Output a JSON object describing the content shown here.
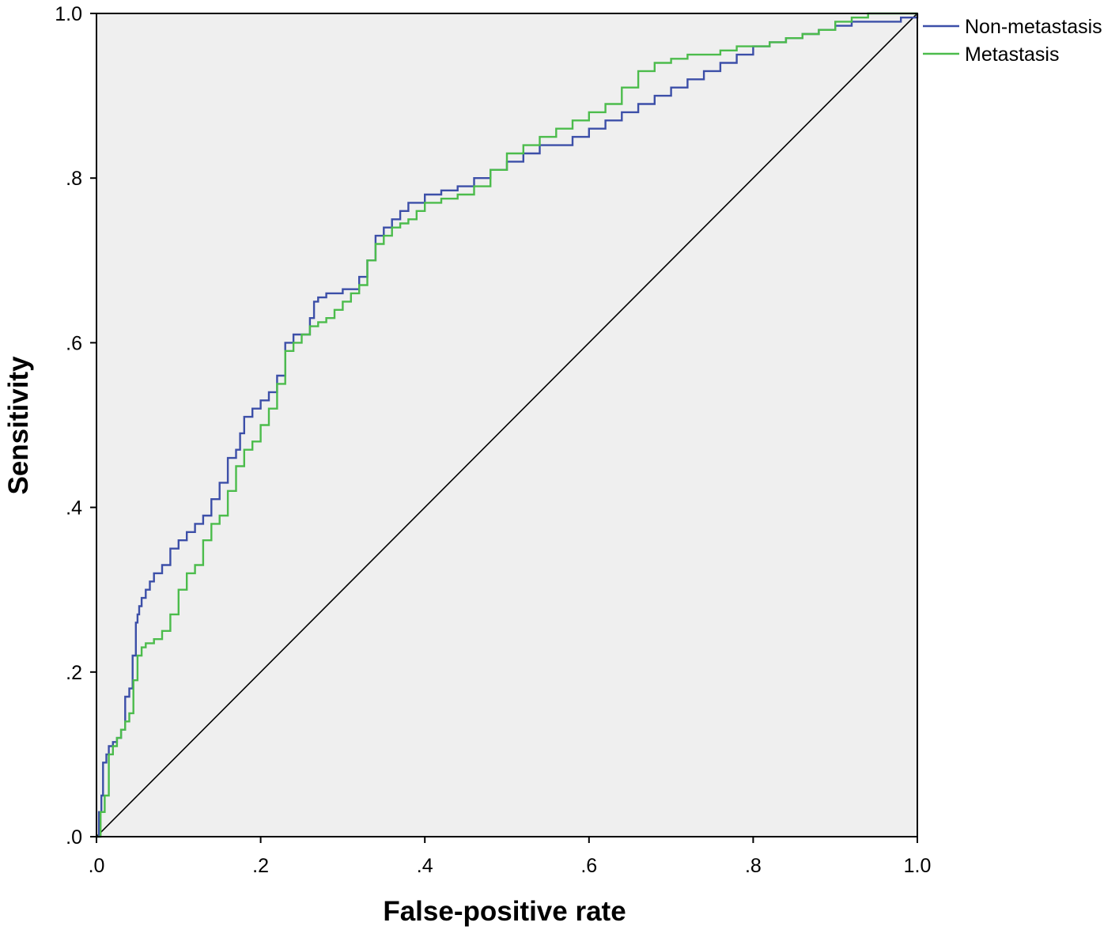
{
  "chart_data": {
    "type": "line",
    "title": "",
    "xlabel": "False-positive rate",
    "ylabel": "Sensitivity",
    "xlim": [
      0,
      1
    ],
    "ylim": [
      0,
      1
    ],
    "xticks": [
      0,
      0.2,
      0.4,
      0.6,
      0.8,
      1.0
    ],
    "xtick_labels": [
      ".0",
      ".2",
      ".4",
      ".6",
      ".8",
      "1.0"
    ],
    "yticks": [
      0,
      0.2,
      0.4,
      0.6,
      0.8,
      1.0
    ],
    "ytick_labels": [
      ".0",
      ".2",
      ".4",
      ".6",
      ".8",
      "1.0"
    ],
    "grid": false,
    "legend_position": "top-right outside",
    "plot_background": "#efefef",
    "reference_line": {
      "x": [
        0,
        1
      ],
      "y": [
        0,
        1
      ],
      "color": "#000000"
    },
    "series": [
      {
        "name": "Non-metastasis",
        "color": "#3c4fa8",
        "x": [
          0,
          0.003,
          0.006,
          0.008,
          0.012,
          0.015,
          0.02,
          0.025,
          0.03,
          0.035,
          0.04,
          0.044,
          0.048,
          0.05,
          0.052,
          0.055,
          0.06,
          0.065,
          0.07,
          0.08,
          0.09,
          0.1,
          0.11,
          0.12,
          0.13,
          0.14,
          0.15,
          0.16,
          0.17,
          0.175,
          0.18,
          0.19,
          0.2,
          0.21,
          0.22,
          0.23,
          0.24,
          0.25,
          0.26,
          0.265,
          0.27,
          0.28,
          0.29,
          0.3,
          0.32,
          0.33,
          0.34,
          0.35,
          0.36,
          0.37,
          0.38,
          0.4,
          0.42,
          0.44,
          0.46,
          0.48,
          0.5,
          0.52,
          0.54,
          0.56,
          0.58,
          0.6,
          0.62,
          0.64,
          0.66,
          0.68,
          0.7,
          0.72,
          0.74,
          0.76,
          0.78,
          0.8,
          0.82,
          0.84,
          0.86,
          0.88,
          0.9,
          0.92,
          0.94,
          0.96,
          0.98,
          1.0
        ],
        "y": [
          0,
          0.03,
          0.05,
          0.09,
          0.1,
          0.11,
          0.115,
          0.12,
          0.13,
          0.17,
          0.18,
          0.22,
          0.26,
          0.27,
          0.28,
          0.29,
          0.3,
          0.31,
          0.32,
          0.33,
          0.35,
          0.36,
          0.37,
          0.38,
          0.39,
          0.41,
          0.43,
          0.46,
          0.47,
          0.49,
          0.51,
          0.52,
          0.53,
          0.54,
          0.56,
          0.6,
          0.61,
          0.61,
          0.63,
          0.65,
          0.655,
          0.66,
          0.66,
          0.665,
          0.68,
          0.7,
          0.73,
          0.74,
          0.75,
          0.76,
          0.77,
          0.78,
          0.785,
          0.79,
          0.8,
          0.81,
          0.82,
          0.83,
          0.84,
          0.84,
          0.85,
          0.86,
          0.87,
          0.88,
          0.89,
          0.9,
          0.91,
          0.92,
          0.93,
          0.94,
          0.95,
          0.96,
          0.965,
          0.97,
          0.975,
          0.98,
          0.985,
          0.99,
          0.99,
          0.99,
          0.995,
          1.0
        ]
      },
      {
        "name": "Metastasis",
        "color": "#4cbc4c",
        "x": [
          0,
          0.005,
          0.01,
          0.015,
          0.02,
          0.025,
          0.03,
          0.035,
          0.04,
          0.045,
          0.05,
          0.055,
          0.06,
          0.07,
          0.08,
          0.09,
          0.1,
          0.11,
          0.12,
          0.13,
          0.14,
          0.15,
          0.16,
          0.17,
          0.18,
          0.19,
          0.2,
          0.21,
          0.22,
          0.23,
          0.24,
          0.25,
          0.26,
          0.27,
          0.28,
          0.29,
          0.3,
          0.31,
          0.32,
          0.33,
          0.34,
          0.35,
          0.36,
          0.37,
          0.38,
          0.39,
          0.4,
          0.42,
          0.44,
          0.46,
          0.48,
          0.5,
          0.52,
          0.54,
          0.56,
          0.58,
          0.6,
          0.62,
          0.64,
          0.66,
          0.68,
          0.7,
          0.72,
          0.74,
          0.76,
          0.78,
          0.8,
          0.82,
          0.84,
          0.86,
          0.88,
          0.9,
          0.92,
          0.94,
          0.96,
          0.98,
          1.0
        ],
        "y": [
          0,
          0.03,
          0.05,
          0.1,
          0.11,
          0.12,
          0.13,
          0.14,
          0.15,
          0.19,
          0.22,
          0.23,
          0.235,
          0.24,
          0.25,
          0.27,
          0.3,
          0.32,
          0.33,
          0.36,
          0.38,
          0.39,
          0.42,
          0.45,
          0.47,
          0.48,
          0.5,
          0.52,
          0.55,
          0.59,
          0.6,
          0.61,
          0.62,
          0.625,
          0.63,
          0.64,
          0.65,
          0.66,
          0.67,
          0.7,
          0.72,
          0.73,
          0.74,
          0.745,
          0.75,
          0.76,
          0.77,
          0.775,
          0.78,
          0.79,
          0.81,
          0.83,
          0.84,
          0.85,
          0.86,
          0.87,
          0.88,
          0.89,
          0.91,
          0.93,
          0.94,
          0.945,
          0.95,
          0.95,
          0.955,
          0.96,
          0.96,
          0.965,
          0.97,
          0.975,
          0.98,
          0.99,
          0.995,
          1.0,
          1.0,
          1.0,
          1.0
        ]
      }
    ]
  }
}
